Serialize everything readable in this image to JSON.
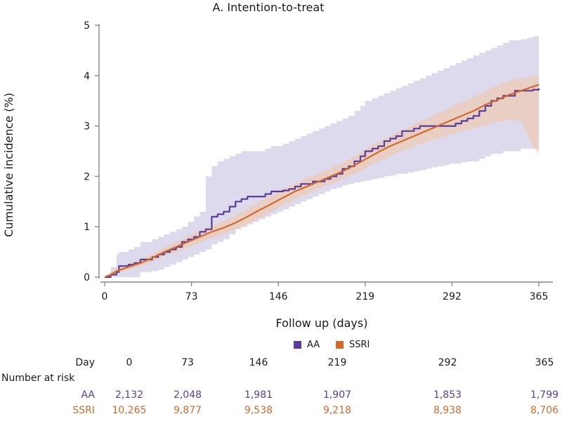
{
  "chart_data": {
    "type": "line",
    "title": "A. Intention-to-treat",
    "xlabel": "Follow up (days)",
    "ylabel": "Cumulative incidence (%)",
    "xlim": [
      0,
      365
    ],
    "ylim": [
      0,
      5
    ],
    "xticks": [
      "0",
      "73",
      "146",
      "219",
      "292",
      "365"
    ],
    "yticks": [
      "0",
      "1",
      "2",
      "3",
      "4",
      "5"
    ],
    "grid": false,
    "series": [
      {
        "name": "AA",
        "color": "#5a3d9b",
        "band_color": "#b4acd8",
        "step": true,
        "x": [
          0,
          5,
          10,
          12,
          20,
          25,
          30,
          40,
          45,
          50,
          55,
          60,
          65,
          70,
          75,
          80,
          85,
          90,
          95,
          100,
          105,
          110,
          115,
          120,
          125,
          130,
          135,
          140,
          145,
          150,
          155,
          160,
          165,
          170,
          175,
          180,
          185,
          190,
          195,
          200,
          205,
          210,
          215,
          219,
          225,
          230,
          235,
          240,
          245,
          250,
          255,
          260,
          265,
          270,
          275,
          280,
          285,
          290,
          295,
          300,
          305,
          310,
          315,
          320,
          325,
          330,
          335,
          340,
          345,
          350,
          355,
          360,
          365
        ],
        "y": [
          0.0,
          0.05,
          0.1,
          0.22,
          0.25,
          0.28,
          0.35,
          0.4,
          0.45,
          0.5,
          0.55,
          0.6,
          0.7,
          0.75,
          0.8,
          0.9,
          0.95,
          1.2,
          1.25,
          1.3,
          1.4,
          1.5,
          1.55,
          1.6,
          1.6,
          1.6,
          1.65,
          1.7,
          1.7,
          1.72,
          1.75,
          1.8,
          1.85,
          1.85,
          1.9,
          1.9,
          1.95,
          2.0,
          2.05,
          2.15,
          2.2,
          2.3,
          2.4,
          2.5,
          2.55,
          2.6,
          2.7,
          2.75,
          2.8,
          2.9,
          2.9,
          2.95,
          3.0,
          3.0,
          3.0,
          3.0,
          3.0,
          3.0,
          3.05,
          3.1,
          3.15,
          3.2,
          3.3,
          3.4,
          3.5,
          3.55,
          3.6,
          3.6,
          3.7,
          3.7,
          3.7,
          3.72,
          3.75
        ],
        "lower": [
          0.0,
          0.0,
          0.0,
          0.0,
          0.0,
          0.0,
          0.1,
          0.12,
          0.15,
          0.2,
          0.25,
          0.3,
          0.35,
          0.4,
          0.45,
          0.5,
          0.55,
          0.65,
          0.7,
          0.75,
          0.85,
          0.95,
          1.0,
          1.05,
          1.1,
          1.15,
          1.2,
          1.25,
          1.3,
          1.35,
          1.4,
          1.45,
          1.5,
          1.55,
          1.6,
          1.65,
          1.7,
          1.75,
          1.78,
          1.82,
          1.85,
          1.88,
          1.9,
          1.92,
          1.95,
          1.97,
          2.0,
          2.02,
          2.05,
          2.05,
          2.08,
          2.1,
          2.12,
          2.15,
          2.18,
          2.2,
          2.22,
          2.25,
          2.25,
          2.28,
          2.3,
          2.3,
          2.35,
          2.4,
          2.45,
          2.45,
          2.5,
          2.5,
          2.5,
          2.55,
          2.55,
          2.55,
          2.55
        ],
        "upper": [
          0.0,
          0.2,
          0.45,
          0.5,
          0.55,
          0.6,
          0.7,
          0.75,
          0.8,
          0.85,
          0.9,
          0.95,
          1.0,
          1.1,
          1.2,
          1.3,
          2.0,
          2.2,
          2.3,
          2.35,
          2.4,
          2.45,
          2.5,
          2.5,
          2.5,
          2.5,
          2.55,
          2.6,
          2.6,
          2.65,
          2.7,
          2.75,
          2.8,
          2.85,
          2.9,
          2.95,
          3.0,
          3.05,
          3.1,
          3.15,
          3.2,
          3.3,
          3.4,
          3.5,
          3.55,
          3.6,
          3.65,
          3.7,
          3.75,
          3.8,
          3.85,
          3.9,
          3.95,
          4.0,
          4.05,
          4.1,
          4.15,
          4.2,
          4.25,
          4.3,
          4.35,
          4.4,
          4.45,
          4.5,
          4.55,
          4.6,
          4.65,
          4.7,
          4.7,
          4.72,
          4.75,
          4.78,
          4.8
        ]
      },
      {
        "name": "SSRI",
        "color": "#d2692d",
        "band_color": "#f2c6a9",
        "step": false,
        "x": [
          0,
          5,
          10,
          20,
          30,
          40,
          50,
          60,
          70,
          80,
          90,
          100,
          110,
          120,
          130,
          140,
          150,
          160,
          170,
          180,
          190,
          200,
          210,
          220,
          230,
          240,
          250,
          260,
          270,
          280,
          290,
          300,
          310,
          320,
          330,
          340,
          350,
          360,
          365
        ],
        "y": [
          0.0,
          0.05,
          0.12,
          0.2,
          0.28,
          0.38,
          0.5,
          0.6,
          0.7,
          0.8,
          0.9,
          0.98,
          1.08,
          1.2,
          1.33,
          1.45,
          1.58,
          1.7,
          1.8,
          1.9,
          2.0,
          2.1,
          2.22,
          2.35,
          2.48,
          2.6,
          2.7,
          2.8,
          2.9,
          3.0,
          3.1,
          3.2,
          3.3,
          3.42,
          3.52,
          3.62,
          3.7,
          3.78,
          3.82
        ],
        "lower": [
          0.0,
          0.0,
          0.08,
          0.15,
          0.22,
          0.3,
          0.42,
          0.5,
          0.58,
          0.68,
          0.78,
          0.85,
          0.95,
          1.05,
          1.17,
          1.3,
          1.42,
          1.55,
          1.65,
          1.75,
          1.85,
          1.95,
          2.05,
          2.17,
          2.3,
          2.4,
          2.5,
          2.6,
          2.68,
          2.75,
          2.82,
          2.9,
          2.95,
          3.02,
          3.08,
          3.12,
          3.1,
          2.6,
          2.45
        ],
        "upper": [
          0.0,
          0.1,
          0.18,
          0.26,
          0.35,
          0.46,
          0.58,
          0.7,
          0.82,
          0.93,
          1.02,
          1.12,
          1.22,
          1.36,
          1.5,
          1.62,
          1.75,
          1.86,
          1.96,
          2.06,
          2.16,
          2.27,
          2.4,
          2.55,
          2.68,
          2.8,
          2.92,
          3.03,
          3.14,
          3.25,
          3.36,
          3.47,
          3.58,
          3.7,
          3.8,
          3.9,
          3.95,
          3.98,
          4.0
        ]
      }
    ]
  },
  "legend": {
    "aa_label": "AA",
    "ssri_label": "SSRI",
    "aa_color": "#5a3d9b",
    "ssri_color": "#d2692d"
  },
  "risk_table": {
    "day_label": "Day",
    "number_label": "Number at risk",
    "days": [
      "0",
      "73",
      "146",
      "219",
      "292",
      "365"
    ],
    "aa_label": "AA",
    "ssri_label": "SSRI",
    "aa_values": [
      "2,132",
      "2,048",
      "1,981",
      "1,907",
      "1,853",
      "1,799"
    ],
    "ssri_values": [
      "10,265",
      "9,877",
      "9,538",
      "9,218",
      "8,938",
      "8,706"
    ]
  }
}
